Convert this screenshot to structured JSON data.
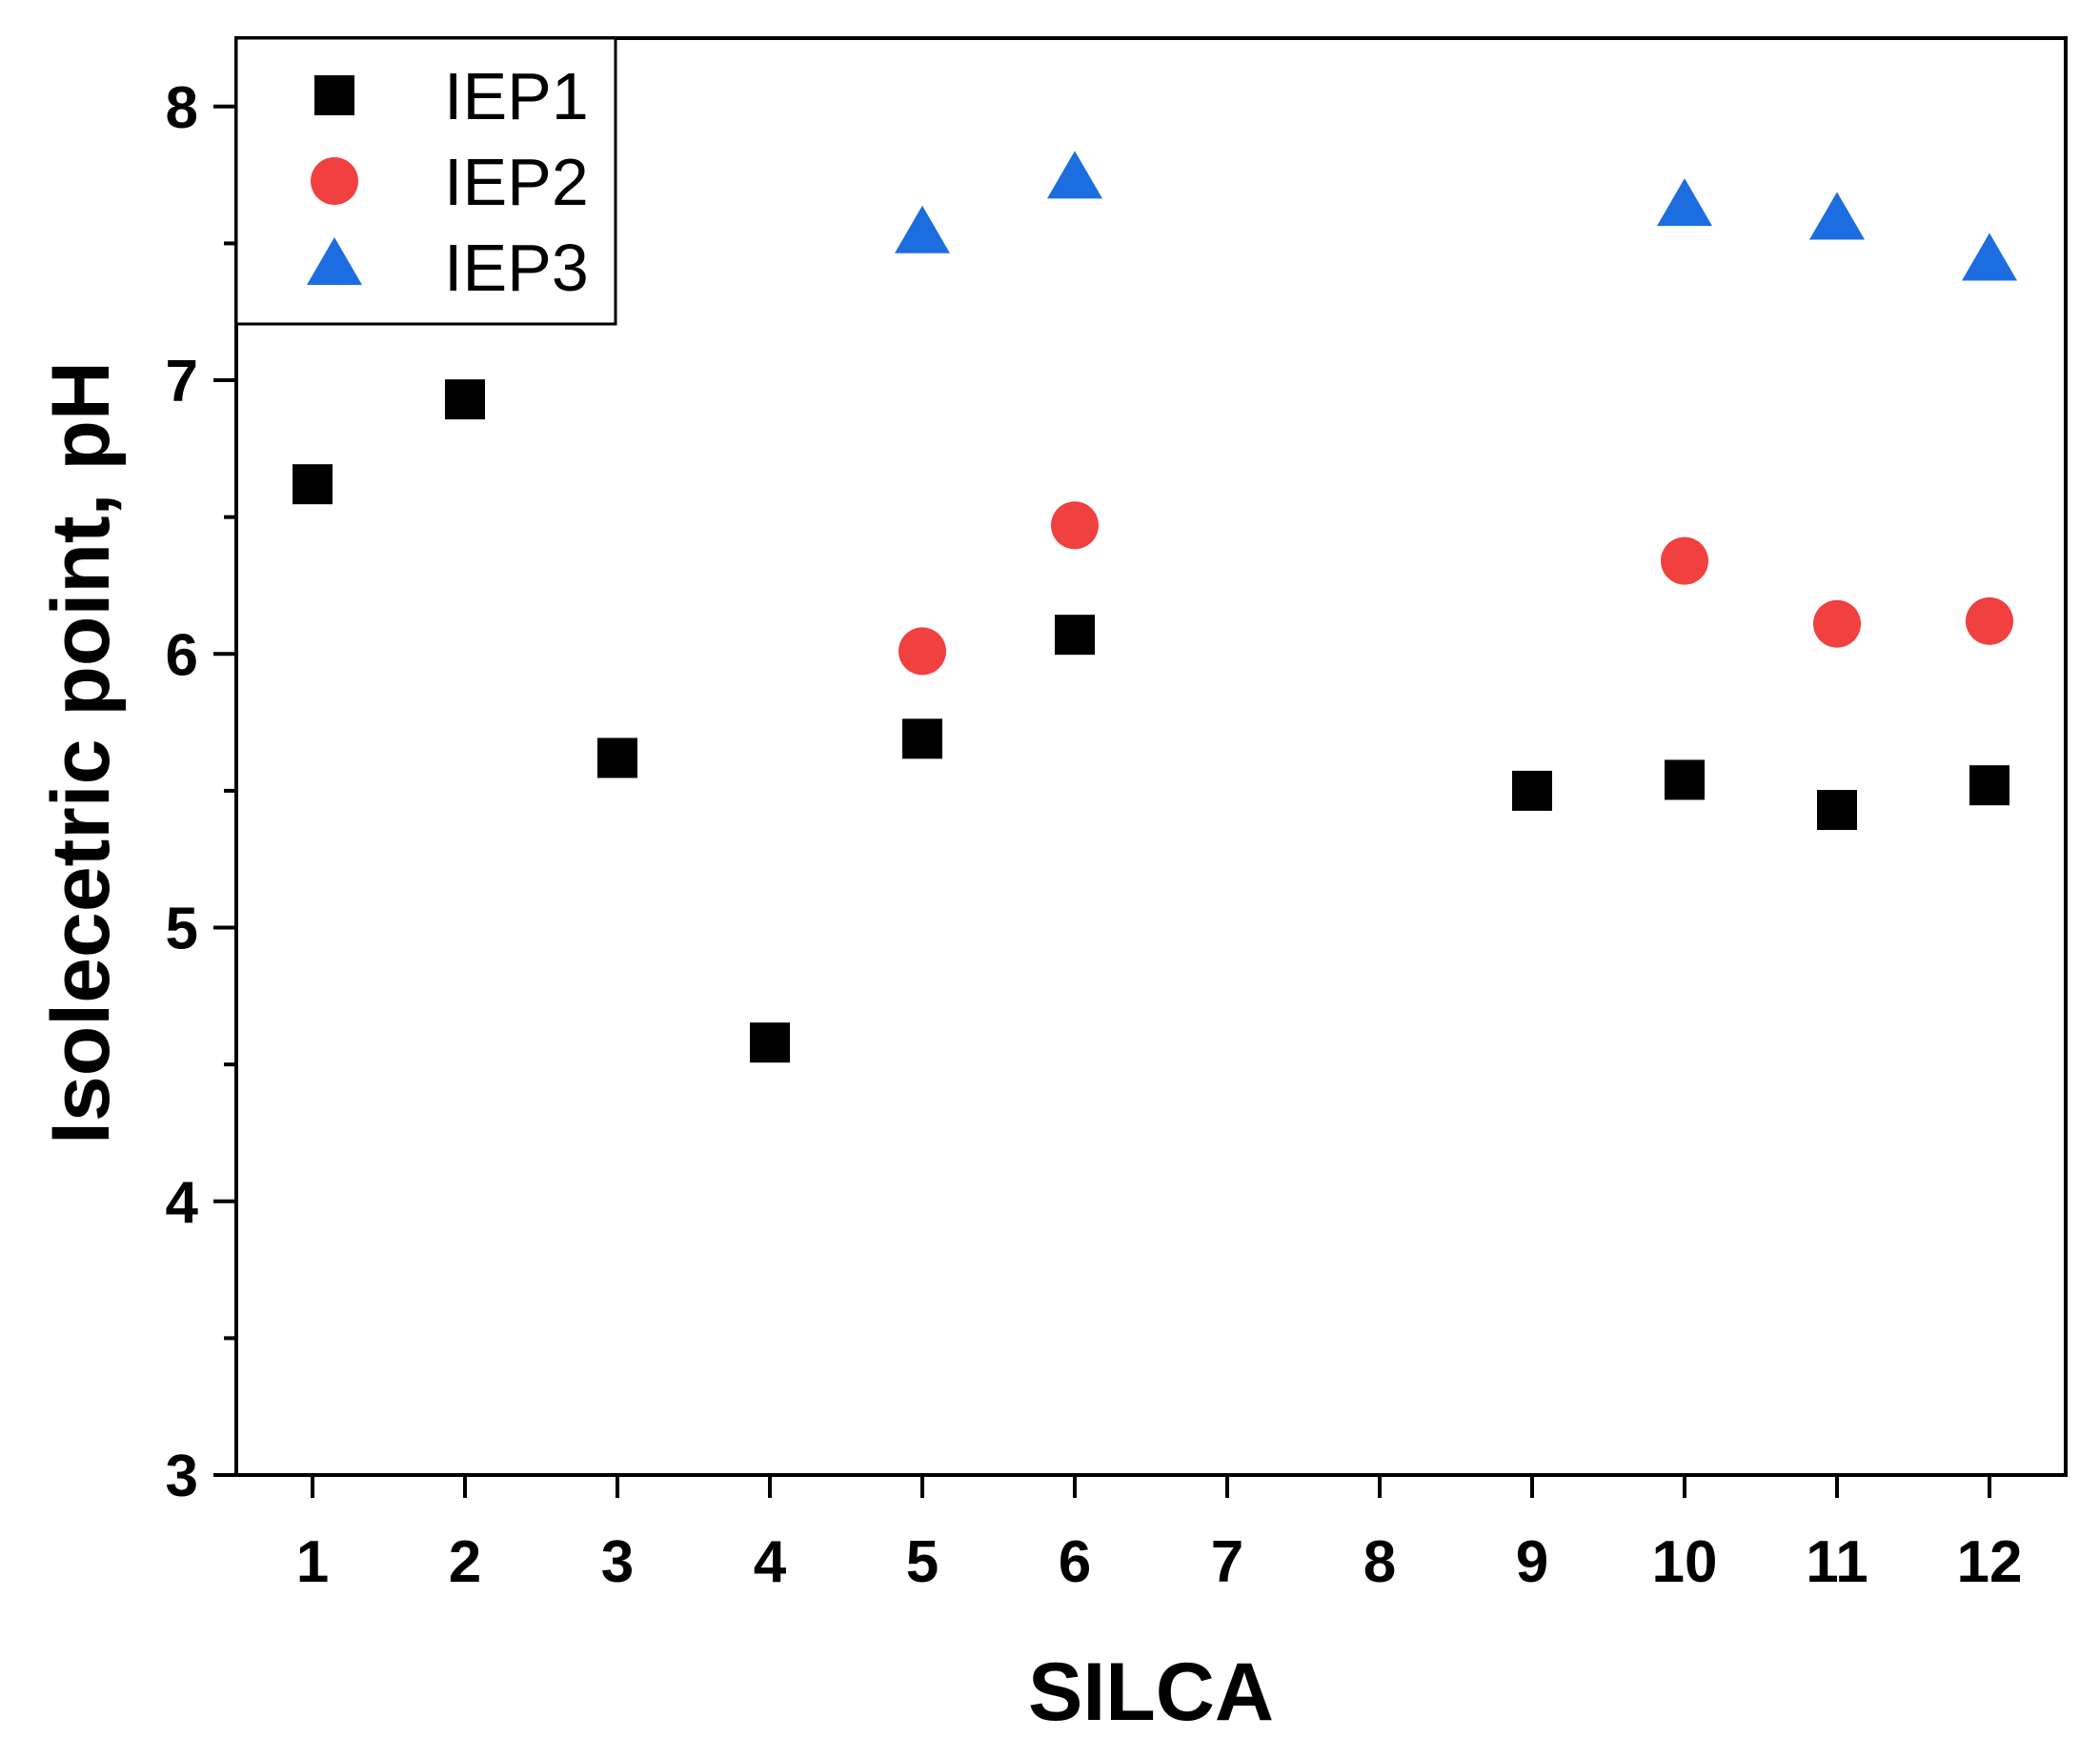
{
  "chart_data": {
    "type": "scatter",
    "title": "",
    "xlabel": "SILCA",
    "ylabel": "Isolecetric point, pH",
    "xlim": [
      0.5,
      12.5
    ],
    "ylim": [
      3,
      8.25
    ],
    "xticks": [
      "1",
      "2",
      "3",
      "4",
      "5",
      "6",
      "7",
      "8",
      "9",
      "10",
      "11",
      "12"
    ],
    "yticks": [
      "3",
      "4",
      "5",
      "6",
      "7",
      "8"
    ],
    "legend_position": "top-left",
    "series": [
      {
        "name": "IEP1",
        "marker": "square",
        "color": "#000000",
        "points": [
          [
            1,
            6.62
          ],
          [
            2,
            6.93
          ],
          [
            3,
            5.62
          ],
          [
            4,
            4.58
          ],
          [
            5,
            5.69
          ],
          [
            6,
            6.07
          ],
          [
            9,
            5.5
          ],
          [
            10,
            5.54
          ],
          [
            11,
            5.43
          ],
          [
            12,
            5.52
          ]
        ]
      },
      {
        "name": "IEP2",
        "marker": "circle",
        "color": "#f04040",
        "points": [
          [
            5,
            6.01
          ],
          [
            6,
            6.47
          ],
          [
            10,
            6.34
          ],
          [
            11,
            6.11
          ],
          [
            12,
            6.12
          ]
        ]
      },
      {
        "name": "IEP3",
        "marker": "triangle",
        "color": "#1c6ee0",
        "points": [
          [
            5,
            7.53
          ],
          [
            6,
            7.73
          ],
          [
            10,
            7.63
          ],
          [
            11,
            7.58
          ],
          [
            12,
            7.43
          ]
        ]
      }
    ]
  }
}
